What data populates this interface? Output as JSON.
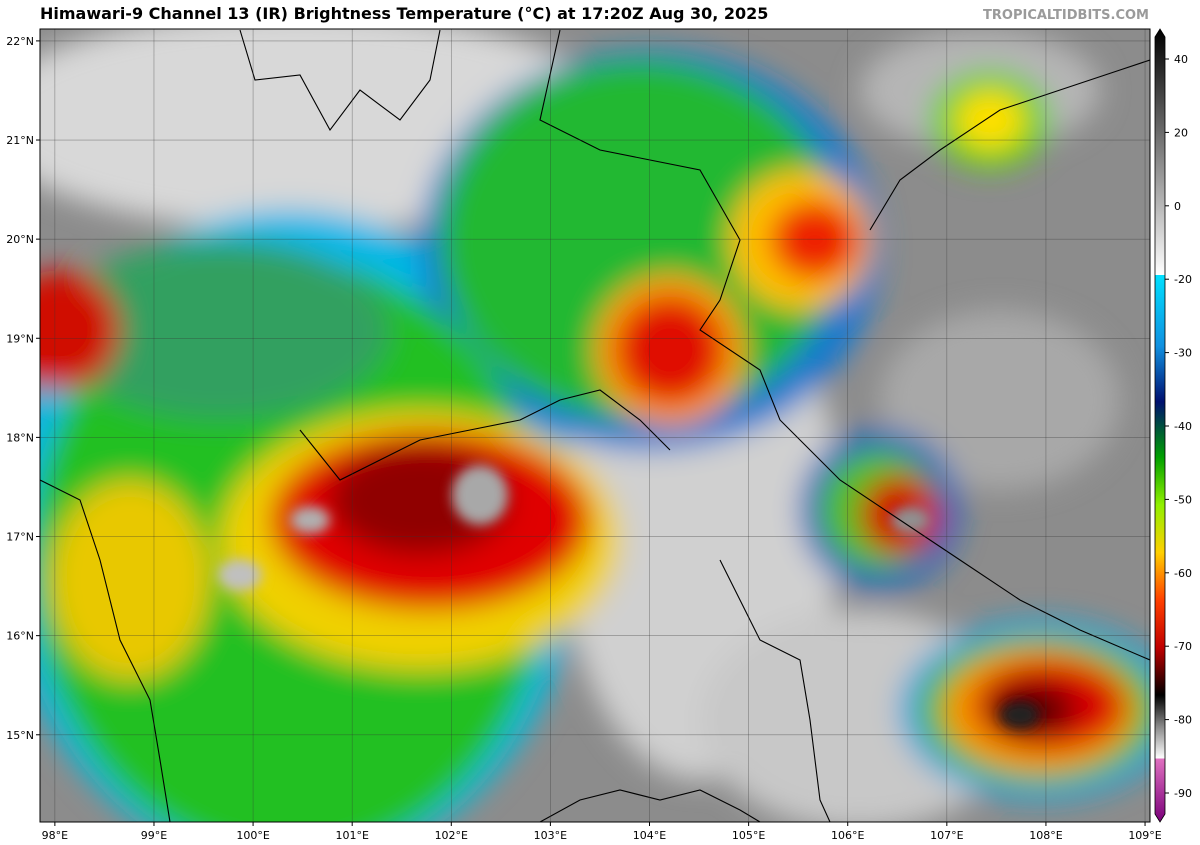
{
  "header": {
    "title": "Himawari-9 Channel 13 (IR) Brightness Temperature (°C) at 17:20Z Aug 30, 2025",
    "watermark": "TROPICALTIDBITS.COM"
  },
  "map": {
    "lonlim": [
      97.85,
      109.05
    ],
    "latlim": [
      14.12,
      22.12
    ],
    "lat_ticks": [
      {
        "value": 22,
        "label": "22°N"
      },
      {
        "value": 21,
        "label": "21°N"
      },
      {
        "value": 20,
        "label": "20°N"
      },
      {
        "value": 19,
        "label": "19°N"
      },
      {
        "value": 18,
        "label": "18°N"
      },
      {
        "value": 17,
        "label": "17°N"
      },
      {
        "value": 16,
        "label": "16°N"
      },
      {
        "value": 15,
        "label": "15°N"
      }
    ],
    "lon_ticks": [
      {
        "value": 98,
        "label": "98°E"
      },
      {
        "value": 99,
        "label": "99°E"
      },
      {
        "value": 100,
        "label": "100°E"
      },
      {
        "value": 101,
        "label": "101°E"
      },
      {
        "value": 102,
        "label": "102°E"
      },
      {
        "value": 103,
        "label": "103°E"
      },
      {
        "value": 104,
        "label": "104°E"
      },
      {
        "value": 105,
        "label": "105°E"
      },
      {
        "value": 106,
        "label": "106°E"
      },
      {
        "value": 107,
        "label": "107°E"
      },
      {
        "value": 108,
        "label": "108°E"
      },
      {
        "value": 109,
        "label": "109°E"
      }
    ],
    "grid": true
  },
  "colorbar": {
    "ticks": [
      40,
      20,
      0,
      -20,
      -30,
      -40,
      -50,
      -60,
      -70,
      -80,
      -90
    ]
  }
}
